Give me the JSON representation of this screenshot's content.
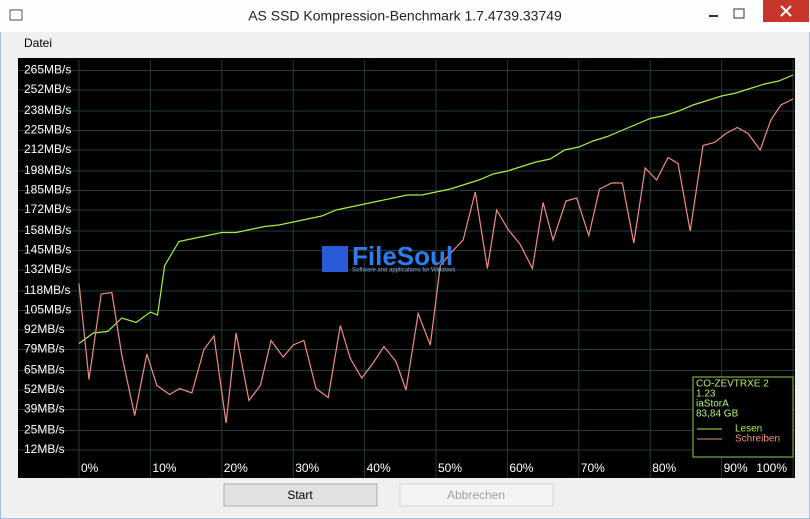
{
  "window": {
    "title": "AS SSD Kompression-Benchmark 1.7.4739.33749",
    "menu": [
      "Datei"
    ],
    "buttons": [
      "Start",
      "Abbrechen"
    ]
  },
  "watermark": {
    "title": "FileSoul",
    "subtitle": "Software and applications for Windows"
  },
  "info": [
    "CO-ZEVTRXE 2",
    "1.23",
    "iaStorA",
    "83,84 GB"
  ],
  "chart_data": {
    "type": "line",
    "grid": true,
    "legend": "lower right",
    "xlim": [
      0,
      100
    ],
    "xticks": [
      {
        "value": 0,
        "label": "0%"
      },
      {
        "value": 10,
        "label": "10%"
      },
      {
        "value": 20,
        "label": "20%"
      },
      {
        "value": 30,
        "label": "30%"
      },
      {
        "value": 40,
        "label": "40%"
      },
      {
        "value": 50,
        "label": "50%"
      },
      {
        "value": 60,
        "label": "60%"
      },
      {
        "value": 70,
        "label": "70%"
      },
      {
        "value": 80,
        "label": "80%"
      },
      {
        "value": 90,
        "label": "90%"
      },
      {
        "value": 100,
        "label": "100%"
      }
    ],
    "ylim": [
      0,
      272
    ],
    "yticks": [
      {
        "value": 265,
        "label": "265MB/s"
      },
      {
        "value": 252,
        "label": "252MB/s"
      },
      {
        "value": 238,
        "label": "238MB/s"
      },
      {
        "value": 225,
        "label": "225MB/s"
      },
      {
        "value": 212,
        "label": "212MB/s"
      },
      {
        "value": 198,
        "label": "198MB/s"
      },
      {
        "value": 185,
        "label": "185MB/s"
      },
      {
        "value": 172,
        "label": "172MB/s"
      },
      {
        "value": 158,
        "label": "158MB/s"
      },
      {
        "value": 145,
        "label": "145MB/s"
      },
      {
        "value": 132,
        "label": "132MB/s"
      },
      {
        "value": 118,
        "label": "118MB/s"
      },
      {
        "value": 105,
        "label": "105MB/s"
      },
      {
        "value": 92,
        "label": "92MB/s"
      },
      {
        "value": 79,
        "label": "79MB/s"
      },
      {
        "value": 65,
        "label": "65MB/s"
      },
      {
        "value": 52,
        "label": "52MB/s"
      },
      {
        "value": 39,
        "label": "39MB/s"
      },
      {
        "value": 25,
        "label": "25MB/s"
      },
      {
        "value": 12,
        "label": "12MB/s"
      }
    ],
    "series": [
      {
        "name": "Lesen",
        "color": "#a4f046",
        "x": [
          0,
          2,
          4,
          6,
          8,
          10,
          11,
          12,
          14,
          16,
          18,
          20,
          22,
          24,
          26,
          28,
          30,
          32,
          34,
          36,
          38,
          40,
          42,
          44,
          46,
          48,
          50,
          52,
          54,
          56,
          58,
          60,
          62,
          64,
          66,
          68,
          70,
          72,
          74,
          76,
          78,
          80,
          82,
          84,
          86,
          88,
          90,
          92,
          94,
          96,
          98,
          100
        ],
        "values": [
          83,
          90,
          91,
          100,
          97,
          104,
          102,
          135,
          151,
          153,
          155,
          157,
          157,
          159,
          161,
          162,
          164,
          166,
          168,
          172,
          174,
          176,
          178,
          180,
          182,
          182,
          184,
          186,
          189,
          192,
          196,
          198,
          201,
          204,
          206,
          212,
          214,
          218,
          221,
          225,
          229,
          233,
          235,
          238,
          242,
          245,
          248,
          250,
          253,
          256,
          258,
          262
        ]
      },
      {
        "name": "Schreiben",
        "color": "#f08c82",
        "x": [
          0,
          1.4,
          3.1,
          4.6,
          6.0,
          7.8,
          9.5,
          10.9,
          12.7,
          14.1,
          15.8,
          17.5,
          18.9,
          20.6,
          22.0,
          23.8,
          25.4,
          26.9,
          28.6,
          30.0,
          31.5,
          33.2,
          34.9,
          36.6,
          38.0,
          39.6,
          41.2,
          42.7,
          44.4,
          45.8,
          47.5,
          49.2,
          50.6,
          52.4,
          53.8,
          55.5,
          57.2,
          58.5,
          60.1,
          61.8,
          63.5,
          65.0,
          66.4,
          68.2,
          69.7,
          71.4,
          72.9,
          74.6,
          76.1,
          77.7,
          79.3,
          80.9,
          82.5,
          83.9,
          85.6,
          87.4,
          89.0,
          90.6,
          92.2,
          93.7,
          95.4,
          96.9,
          98.3,
          100
        ],
        "values": [
          123,
          59,
          116,
          117,
          75,
          35,
          76,
          55,
          49,
          53,
          50,
          79,
          88,
          30,
          90,
          45,
          55,
          85,
          74,
          82,
          85,
          53,
          47,
          95,
          73,
          60,
          70,
          81,
          71,
          52,
          103,
          82,
          135,
          145,
          152,
          184,
          133,
          172,
          159,
          149,
          133,
          177,
          152,
          178,
          180,
          155,
          186,
          190,
          190,
          150,
          200,
          192,
          207,
          203,
          158,
          215,
          217,
          223,
          227,
          223,
          212,
          232,
          242,
          246
        ]
      }
    ]
  }
}
